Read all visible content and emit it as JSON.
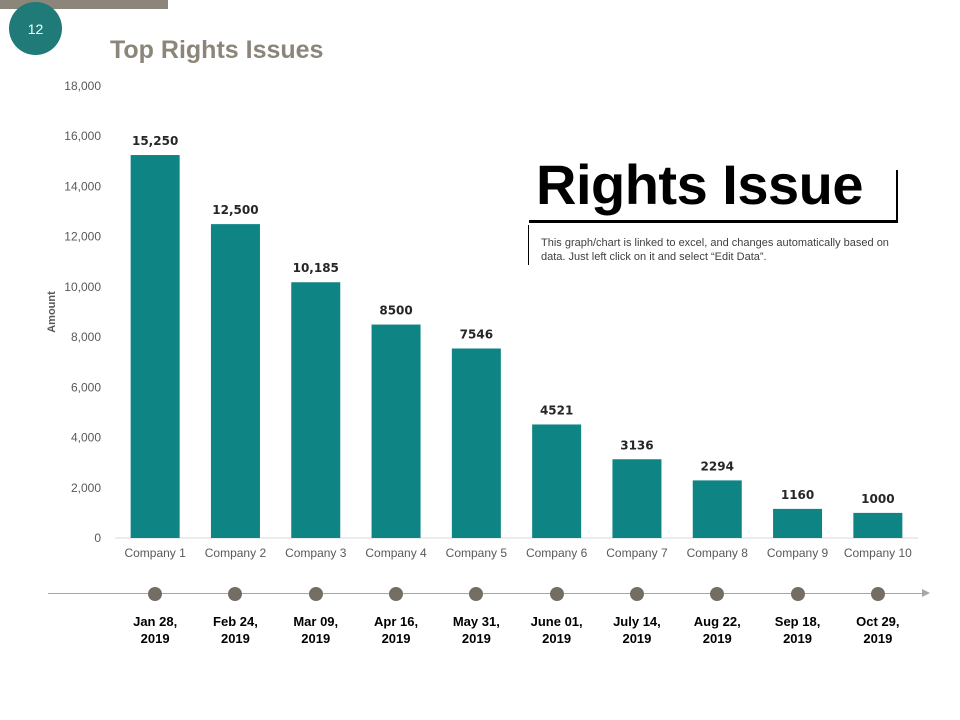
{
  "page_number": "12",
  "title": "Top Rights Issues",
  "heading": "Rights Issue",
  "note": "This graph/chart is linked to excel, and changes automatically based on data. Just left click on it and select “Edit Data”.",
  "colors": {
    "bar": "#0f8484",
    "accent": "#1f7a78",
    "title": "#8c8579",
    "dot": "#746d63"
  },
  "chart_data": {
    "type": "bar",
    "title": "",
    "xlabel": "",
    "ylabel": "Amount",
    "ylim": [
      0,
      18000
    ],
    "yticks": [
      0,
      2000,
      4000,
      6000,
      8000,
      10000,
      12000,
      14000,
      16000,
      18000
    ],
    "ytick_labels": [
      "0",
      "2,000",
      "4,000",
      "6,000",
      "8,000",
      "10,000",
      "12,000",
      "14,000",
      "16,000",
      "18,000"
    ],
    "categories": [
      "Company 1",
      "Company 2",
      "Company 3",
      "Company 4",
      "Company 5",
      "Company 6",
      "Company 7",
      "Company 8",
      "Company 9",
      "Company 10"
    ],
    "values": [
      15250,
      12500,
      10185,
      8500,
      7546,
      4521,
      3136,
      2294,
      1160,
      1000
    ],
    "data_labels": [
      "15,250",
      "12,500",
      "10,185",
      "8500",
      "7546",
      "4521",
      "3136",
      "2294",
      "1160",
      "1000"
    ]
  },
  "timeline": {
    "dates": [
      [
        "Jan 28,",
        "2019"
      ],
      [
        "Feb 24,",
        "2019"
      ],
      [
        "Mar 09,",
        "2019"
      ],
      [
        "Apr 16,",
        "2019"
      ],
      [
        "May 31,",
        "2019"
      ],
      [
        "June 01,",
        "2019"
      ],
      [
        "July 14,",
        "2019"
      ],
      [
        "Aug 22,",
        "2019"
      ],
      [
        "Sep 18,",
        "2019"
      ],
      [
        "Oct 29,",
        "2019"
      ]
    ]
  }
}
